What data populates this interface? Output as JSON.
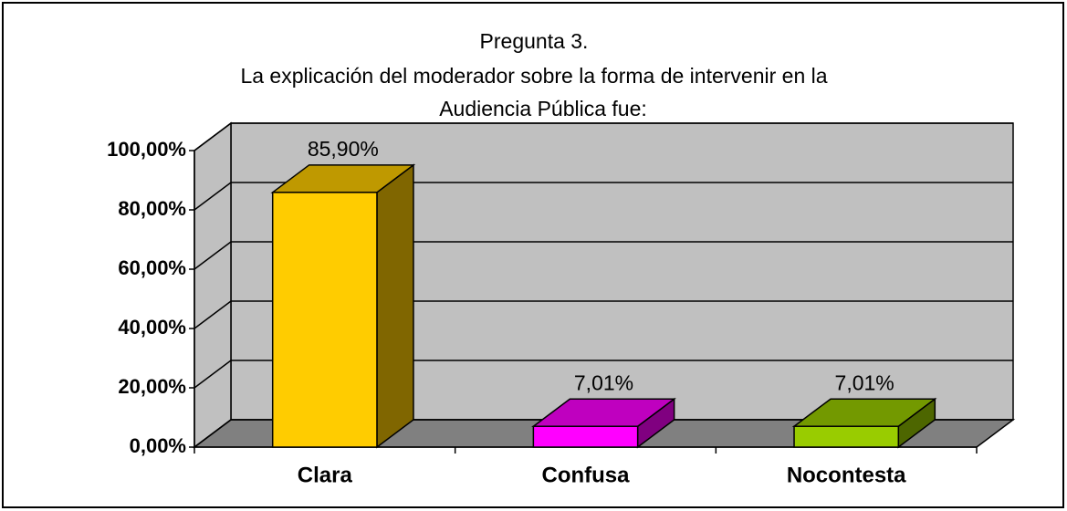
{
  "chart_data": {
    "type": "bar3d",
    "title": [
      "Pregunta 3.",
      "La explicación del moderador sobre la forma de intervenir en la",
      "Audiencia Pública fue:"
    ],
    "categories": [
      "Clara",
      "Confusa",
      "Nocontesta"
    ],
    "values": [
      85.9,
      7.01,
      7.01
    ],
    "value_labels": [
      "85,90%",
      "7,01%",
      "7,01%"
    ],
    "colors": [
      "#ffcc00",
      "#ff00ff",
      "#99cc00"
    ],
    "ylim": [
      0,
      100
    ],
    "yticks": [
      {
        "value": 0,
        "label": "0,00%"
      },
      {
        "value": 20,
        "label": "20,00%"
      },
      {
        "value": 40,
        "label": "40,00%"
      },
      {
        "value": 60,
        "label": "60,00%"
      },
      {
        "value": 80,
        "label": "80,00%"
      },
      {
        "value": 100,
        "label": "100,00%"
      }
    ],
    "grid": true
  }
}
